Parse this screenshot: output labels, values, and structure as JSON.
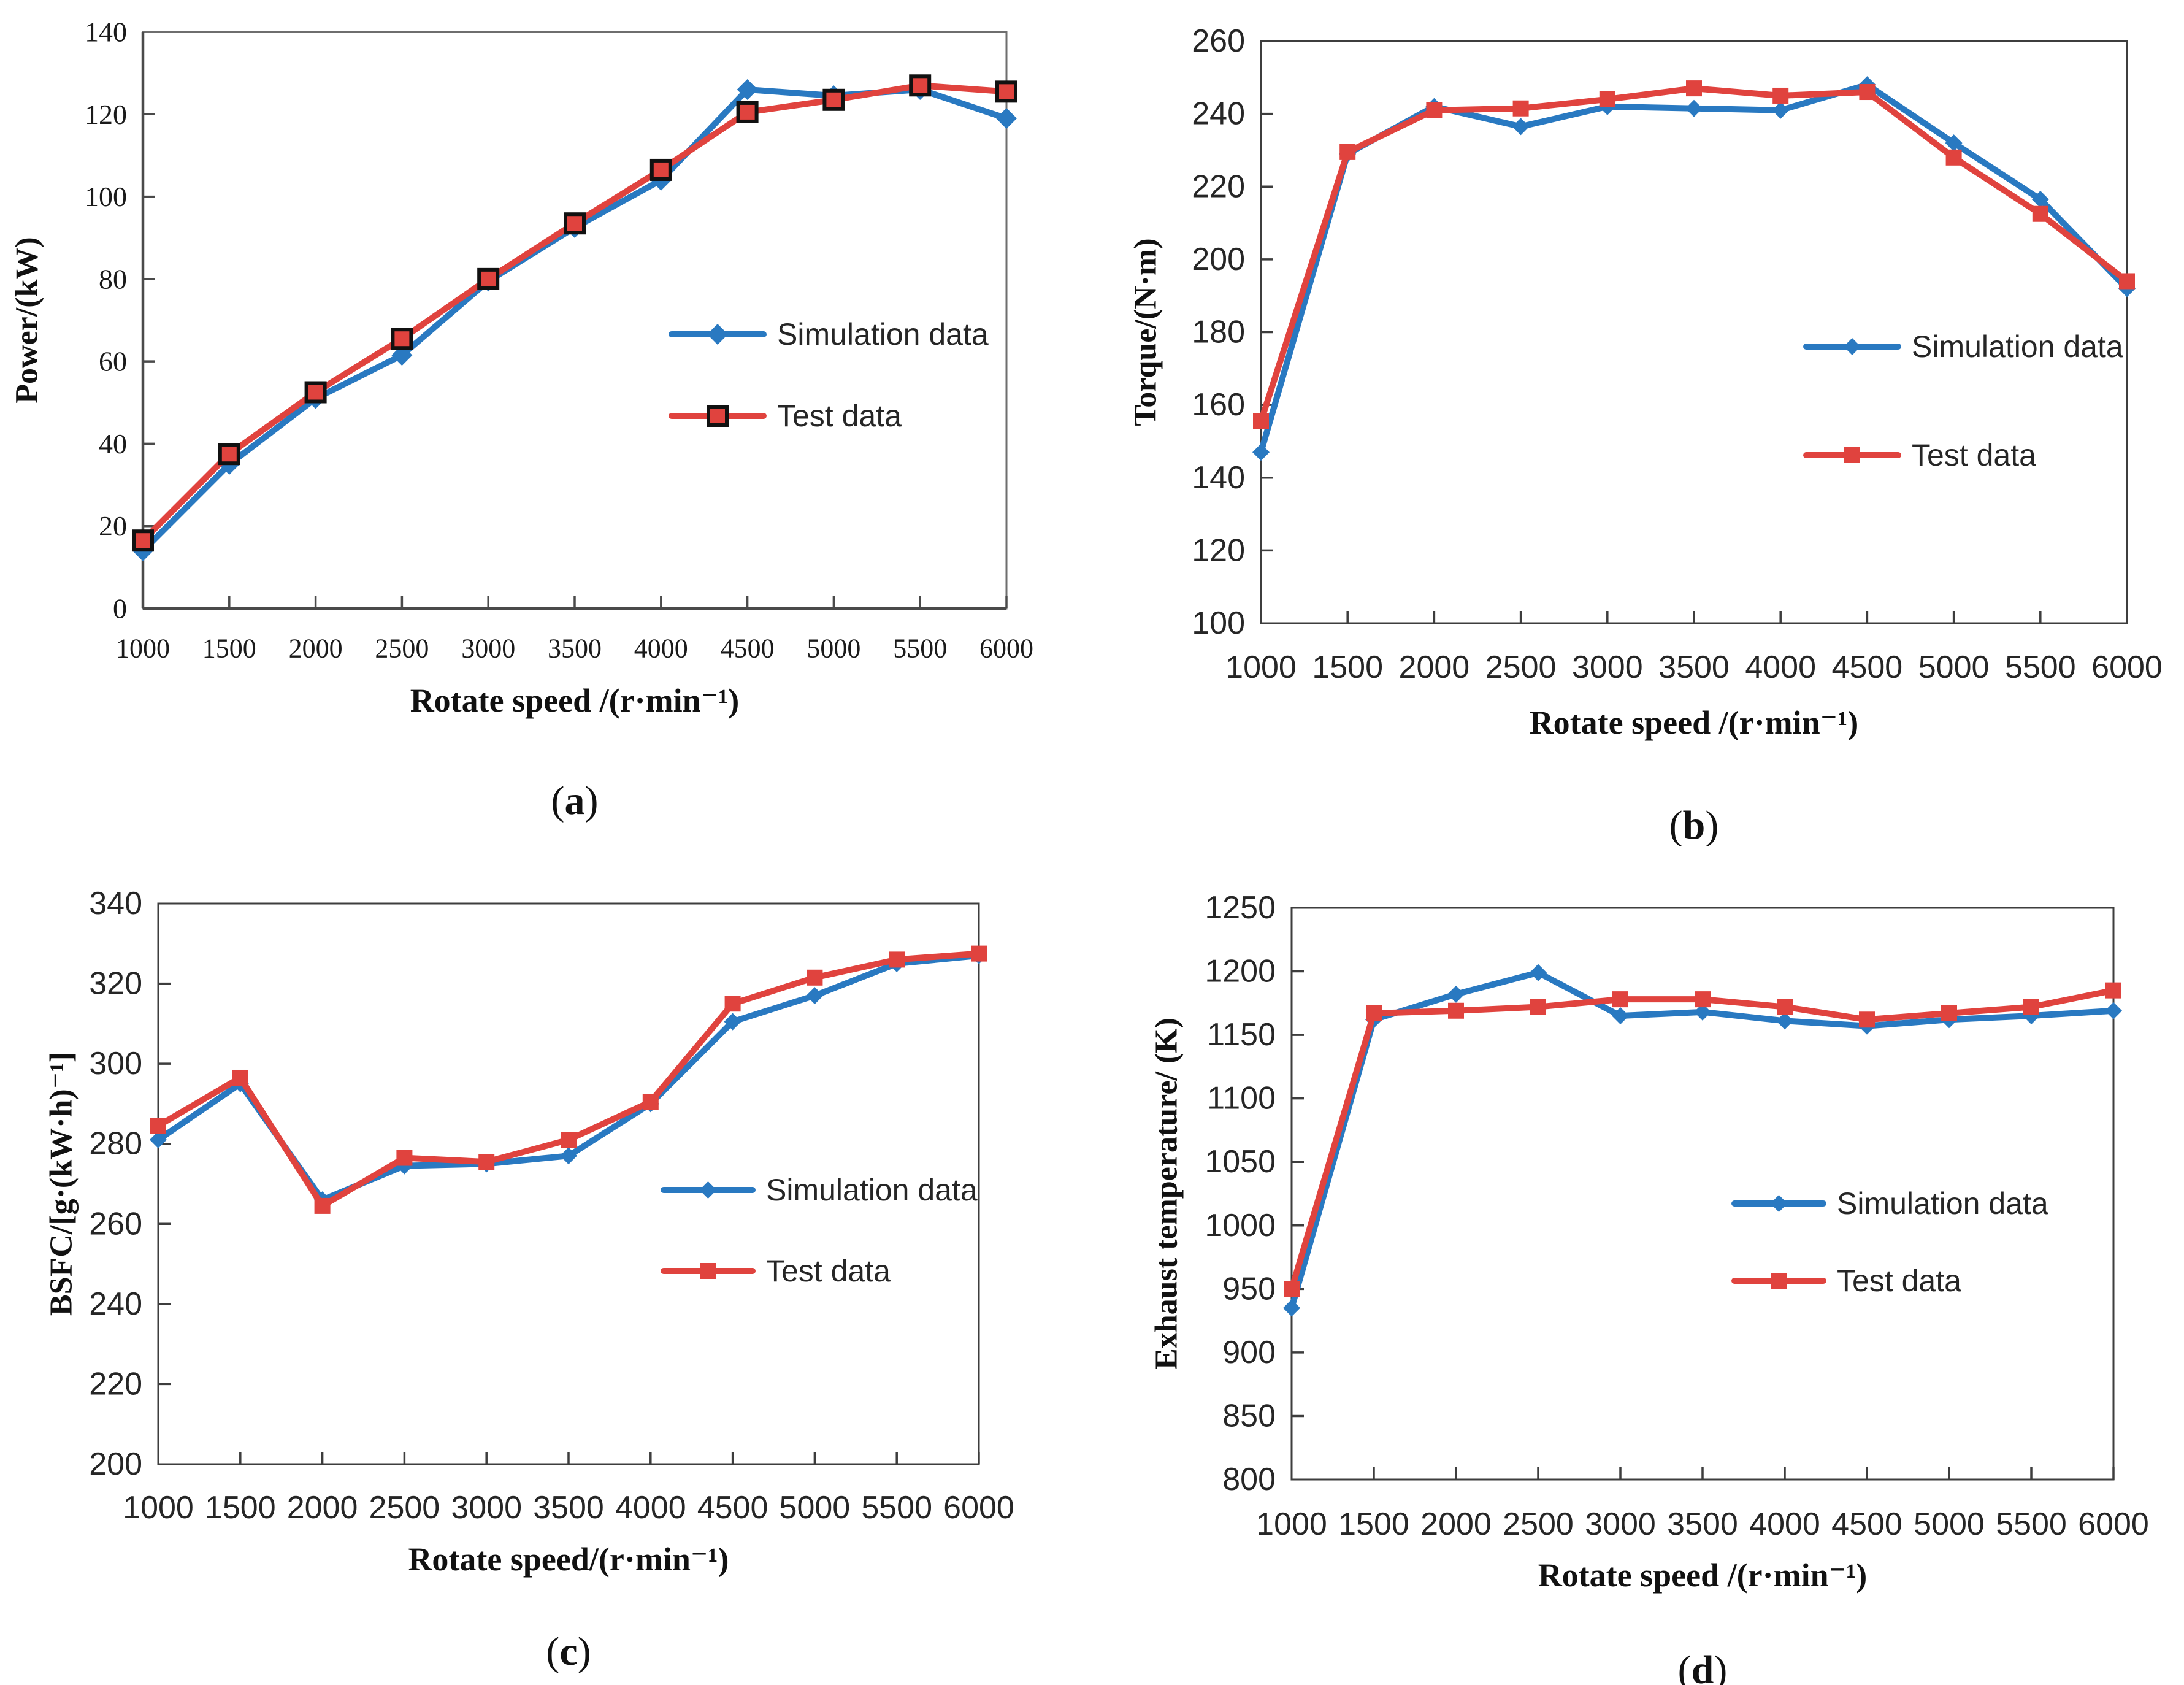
{
  "figure": {
    "background": "#ffffff",
    "series_colors": {
      "simulation": "#2979C1",
      "test": "#E0433E",
      "test_marker_outline": "#111111"
    },
    "axis_color": "#4a4a4a",
    "legend_labels": [
      "Simulation data",
      "Test data"
    ]
  },
  "chart_data": [
    {
      "type": "line",
      "caption": "(a)",
      "xlabel": "Rotate speed /(r·min⁻¹)",
      "ylabel": "Power/(kW)",
      "x": [
        1000,
        1500,
        2000,
        2500,
        3000,
        3500,
        4000,
        4500,
        5000,
        5500,
        6000
      ],
      "ylim": [
        0,
        140
      ],
      "ytick_step": 20,
      "grid": false,
      "legend_position": "inside-right",
      "series": [
        {
          "name": "Simulation data",
          "color": "#2979C1",
          "marker": "diamond",
          "values": [
            14,
            35,
            51,
            61.5,
            79.5,
            92.5,
            104,
            126,
            124.5,
            126,
            119
          ]
        },
        {
          "name": "Test data",
          "color": "#E0433E",
          "marker": "square",
          "marker_outline": "#111111",
          "values": [
            16.5,
            37.5,
            52.5,
            65.5,
            80,
            93.5,
            106.5,
            120.5,
            123.5,
            127,
            125.5
          ]
        }
      ]
    },
    {
      "type": "line",
      "caption": "(b)",
      "xlabel": "Rotate speed /(r·min⁻¹)",
      "ylabel": "Torque/(N·m)",
      "x": [
        1000,
        1500,
        2000,
        2500,
        3000,
        3500,
        4000,
        4500,
        5000,
        5500,
        6000
      ],
      "ylim": [
        100,
        260
      ],
      "ytick_step": 20,
      "grid": false,
      "legend_position": "inside-right",
      "series": [
        {
          "name": "Simulation data",
          "color": "#2979C1",
          "marker": "diamond",
          "values": [
            147,
            229,
            242,
            236.5,
            242,
            241.5,
            241,
            248,
            232,
            216.5,
            192
          ]
        },
        {
          "name": "Test data",
          "color": "#E0433E",
          "marker": "square",
          "values": [
            155.5,
            229.5,
            241,
            241.5,
            244,
            247,
            245,
            246,
            228,
            212.5,
            194
          ]
        }
      ]
    },
    {
      "type": "line",
      "caption": "(c)",
      "xlabel": "Rotate speed/(r·min⁻¹)",
      "ylabel": "BSFC/[g·(kW·h)⁻¹]",
      "x": [
        1000,
        1500,
        2000,
        2500,
        3000,
        3500,
        4000,
        4500,
        5000,
        5500,
        6000
      ],
      "ylim": [
        200,
        340
      ],
      "ytick_step": 20,
      "grid": false,
      "legend_position": "inside-right",
      "series": [
        {
          "name": "Simulation data",
          "color": "#2979C1",
          "marker": "diamond",
          "values": [
            281,
            295,
            266,
            274.5,
            275,
            277,
            290,
            310.5,
            317,
            325,
            327
          ]
        },
        {
          "name": "Test data",
          "color": "#E0433E",
          "marker": "square",
          "values": [
            284.5,
            296.5,
            264.5,
            276.5,
            275.5,
            281,
            290.5,
            315,
            321.5,
            326,
            327.5
          ]
        }
      ]
    },
    {
      "type": "line",
      "caption": "(d)",
      "xlabel": "Rotate speed /(r·min⁻¹)",
      "ylabel": "Exhaust temperature/ (K)",
      "x": [
        1000,
        1500,
        2000,
        2500,
        3000,
        3500,
        4000,
        4500,
        5000,
        5500,
        6000
      ],
      "ylim": [
        800,
        1250
      ],
      "ytick_step": 50,
      "grid": false,
      "legend_position": "inside-right",
      "series": [
        {
          "name": "Simulation data",
          "color": "#2979C1",
          "marker": "diamond",
          "values": [
            935,
            1162,
            1182,
            1199,
            1165,
            1168,
            1161,
            1157,
            1162,
            1165,
            1169
          ]
        },
        {
          "name": "Test data",
          "color": "#E0433E",
          "marker": "square",
          "values": [
            950,
            1167,
            1169,
            1172,
            1178,
            1178,
            1172,
            1162,
            1167,
            1172,
            1185
          ]
        }
      ]
    }
  ]
}
